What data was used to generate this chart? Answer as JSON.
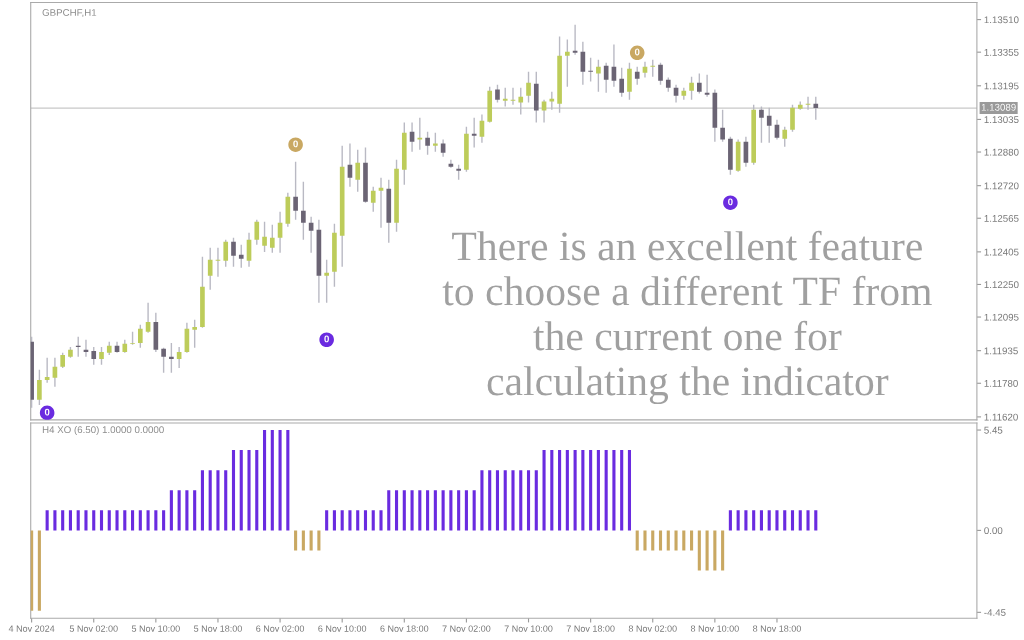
{
  "chart_data": [
    {
      "type": "candlestick",
      "title": "GBPCHF,H1",
      "tick_labels": "y",
      "grid": false,
      "x": [
        "2024-11-04T18:00",
        "2024-11-04T19:00",
        "2024-11-04T20:00",
        "2024-11-04T21:00",
        "2024-11-04T22:00",
        "2024-11-04T23:00",
        "2024-11-05T00:00",
        "2024-11-05T01:00",
        "2024-11-05T02:00",
        "2024-11-05T03:00",
        "2024-11-05T04:00",
        "2024-11-05T05:00",
        "2024-11-05T06:00",
        "2024-11-05T07:00",
        "2024-11-05T08:00",
        "2024-11-05T09:00",
        "2024-11-05T10:00",
        "2024-11-05T11:00",
        "2024-11-05T12:00",
        "2024-11-05T13:00",
        "2024-11-05T14:00",
        "2024-11-05T15:00",
        "2024-11-05T16:00",
        "2024-11-05T17:00",
        "2024-11-05T18:00",
        "2024-11-05T19:00",
        "2024-11-05T20:00",
        "2024-11-05T21:00",
        "2024-11-05T22:00",
        "2024-11-05T23:00",
        "2024-11-06T00:00",
        "2024-11-06T01:00",
        "2024-11-06T02:00",
        "2024-11-06T03:00",
        "2024-11-06T04:00",
        "2024-11-06T05:00",
        "2024-11-06T06:00",
        "2024-11-06T07:00",
        "2024-11-06T08:00",
        "2024-11-06T09:00",
        "2024-11-06T10:00",
        "2024-11-06T11:00",
        "2024-11-06T12:00",
        "2024-11-06T13:00",
        "2024-11-06T14:00",
        "2024-11-06T15:00",
        "2024-11-06T16:00",
        "2024-11-06T17:00",
        "2024-11-06T18:00",
        "2024-11-06T19:00",
        "2024-11-06T20:00",
        "2024-11-06T21:00",
        "2024-11-06T22:00",
        "2024-11-06T23:00",
        "2024-11-07T00:00",
        "2024-11-07T01:00",
        "2024-11-07T02:00",
        "2024-11-07T03:00",
        "2024-11-07T04:00",
        "2024-11-07T05:00",
        "2024-11-07T06:00",
        "2024-11-07T07:00",
        "2024-11-07T08:00",
        "2024-11-07T09:00",
        "2024-11-07T10:00",
        "2024-11-07T11:00",
        "2024-11-07T12:00",
        "2024-11-07T13:00",
        "2024-11-07T14:00",
        "2024-11-07T15:00",
        "2024-11-07T16:00",
        "2024-11-07T17:00",
        "2024-11-07T18:00",
        "2024-11-07T19:00",
        "2024-11-07T20:00",
        "2024-11-07T21:00",
        "2024-11-07T22:00",
        "2024-11-07T23:00",
        "2024-11-08T00:00",
        "2024-11-08T01:00",
        "2024-11-08T02:00",
        "2024-11-08T03:00",
        "2024-11-08T04:00",
        "2024-11-08T05:00",
        "2024-11-08T06:00",
        "2024-11-08T07:00",
        "2024-11-08T08:00",
        "2024-11-08T09:00",
        "2024-11-08T10:00",
        "2024-11-08T11:00",
        "2024-11-08T12:00",
        "2024-11-08T13:00",
        "2024-11-08T14:00",
        "2024-11-08T15:00",
        "2024-11-08T16:00",
        "2024-11-08T17:00",
        "2024-11-08T18:00",
        "2024-11-08T19:00",
        "2024-11-08T20:00",
        "2024-11-08T21:00",
        "2024-11-08T22:00",
        "2024-11-08T23:00"
      ],
      "ohlc": [
        [
          1.11977,
          1.12001,
          1.11663,
          1.11701
        ],
        [
          1.11701,
          1.11844,
          1.11677,
          1.11796
        ],
        [
          1.11796,
          1.11901,
          1.11782,
          1.1181
        ],
        [
          1.11806,
          1.11901,
          1.11763,
          1.11858
        ],
        [
          1.11858,
          1.11925,
          1.11853,
          1.11915
        ],
        [
          1.11906,
          1.11953,
          1.11901,
          1.11939
        ],
        [
          1.11958,
          1.12001,
          1.11906,
          1.11953
        ],
        [
          1.11939,
          1.11987,
          1.11906,
          1.11929
        ],
        [
          1.11934,
          1.11953,
          1.11868,
          1.11896
        ],
        [
          1.11896,
          1.11953,
          1.11868,
          1.11929
        ],
        [
          1.11925,
          1.11977,
          1.11915,
          1.11958
        ],
        [
          1.11958,
          1.11977,
          1.11925,
          1.11929
        ],
        [
          1.11929,
          1.11987,
          1.11925,
          1.11968
        ],
        [
          1.11968,
          1.12025,
          1.11963,
          1.11972
        ],
        [
          1.11972,
          1.12058,
          1.11949,
          1.12039
        ],
        [
          1.12025,
          1.12163,
          1.1202,
          1.12072
        ],
        [
          1.12072,
          1.12115,
          1.11929,
          1.11939
        ],
        [
          1.11944,
          1.11949,
          1.1183,
          1.11906
        ],
        [
          1.11906,
          1.11972,
          1.1183,
          1.11896
        ],
        [
          1.11896,
          1.11953,
          1.11853,
          1.11929
        ],
        [
          1.11929,
          1.12068,
          1.11925,
          1.12039
        ],
        [
          1.12034,
          1.12082,
          1.11949,
          1.12048
        ],
        [
          1.12048,
          1.12382,
          1.12044,
          1.12239
        ],
        [
          1.12291,
          1.12425,
          1.12225,
          1.12367
        ],
        [
          1.12363,
          1.12425,
          1.12287,
          1.12367
        ],
        [
          1.12363,
          1.12463,
          1.12334,
          1.12453
        ],
        [
          1.12453,
          1.12472,
          1.12334,
          1.12386
        ],
        [
          1.12391,
          1.12439,
          1.12329,
          1.12372
        ],
        [
          1.12363,
          1.12496,
          1.12334,
          1.12463
        ],
        [
          1.12463,
          1.12558,
          1.12439,
          1.12548
        ],
        [
          1.12434,
          1.12548,
          1.12405,
          1.12477
        ],
        [
          1.12425,
          1.12534,
          1.12401,
          1.12472
        ],
        [
          1.12472,
          1.12596,
          1.12401,
          1.12544
        ],
        [
          1.12539,
          1.12686,
          1.12524,
          1.12667
        ],
        [
          1.12667,
          1.12834,
          1.12558,
          1.12601
        ],
        [
          1.12601,
          1.12739,
          1.12463,
          1.12544
        ],
        [
          1.12544,
          1.12572,
          1.12401,
          1.12505
        ],
        [
          1.1251,
          1.12558,
          1.12163,
          1.12291
        ],
        [
          1.12291,
          1.12367,
          1.12163,
          1.12306
        ],
        [
          1.1231,
          1.12539,
          1.12239,
          1.12496
        ],
        [
          1.12482,
          1.1291,
          1.12334,
          1.1281
        ],
        [
          1.1282,
          1.1292,
          1.12715,
          1.12758
        ],
        [
          1.12748,
          1.12891,
          1.12691,
          1.12829
        ],
        [
          1.12829,
          1.12901,
          1.12639,
          1.12643
        ],
        [
          1.12639,
          1.12715,
          1.12596,
          1.12696
        ],
        [
          1.12696,
          1.12758,
          1.1252,
          1.1271
        ],
        [
          1.12705,
          1.12748,
          1.12448,
          1.12544
        ],
        [
          1.12544,
          1.12843,
          1.12501,
          1.12801
        ],
        [
          1.12796,
          1.1302,
          1.12724,
          1.12972
        ],
        [
          1.12977,
          1.1302,
          1.12881,
          1.12929
        ],
        [
          1.12939,
          1.13043,
          1.12891,
          1.12948
        ],
        [
          1.12948,
          1.12977,
          1.12867,
          1.1291
        ],
        [
          1.1291,
          1.12972,
          1.12881,
          1.1292
        ],
        [
          1.1292,
          1.12939,
          1.12858,
          1.12877
        ],
        [
          1.12824,
          1.12843,
          1.12805,
          1.1281
        ],
        [
          1.12801,
          1.1282,
          1.12748,
          1.12791
        ],
        [
          1.12796,
          1.13,
          1.12786,
          1.12967
        ],
        [
          1.12967,
          1.13043,
          1.12901,
          1.12958
        ],
        [
          1.12953,
          1.13058,
          1.12924,
          1.13029
        ],
        [
          1.13024,
          1.13191,
          1.1302,
          1.13172
        ],
        [
          1.13177,
          1.132,
          1.13115,
          1.13129
        ],
        [
          1.13124,
          1.13186,
          1.13096,
          1.13134
        ],
        [
          1.13124,
          1.13186,
          1.13105,
          1.13129
        ],
        [
          1.13115,
          1.13186,
          1.13058,
          1.13143
        ],
        [
          1.13148,
          1.13262,
          1.13115,
          1.1321
        ],
        [
          1.13205,
          1.13262,
          1.1302,
          1.13077
        ],
        [
          1.13077,
          1.13129,
          1.1302,
          1.1312
        ],
        [
          1.1312,
          1.13167,
          1.13081,
          1.13134
        ],
        [
          1.1311,
          1.13429,
          1.13067,
          1.13338
        ],
        [
          1.13338,
          1.13415,
          1.13191,
          1.13357
        ],
        [
          1.13362,
          1.13486,
          1.13343,
          1.13352
        ],
        [
          1.13357,
          1.13405,
          1.132,
          1.13262
        ],
        [
          1.13267,
          1.13329,
          1.13215,
          1.13262
        ],
        [
          1.13253,
          1.13319,
          1.13167,
          1.13286
        ],
        [
          1.13291,
          1.13305,
          1.13162,
          1.13224
        ],
        [
          1.13286,
          1.13391,
          1.13191,
          1.13219
        ],
        [
          1.13229,
          1.13281,
          1.13143,
          1.13162
        ],
        [
          1.13167,
          1.13305,
          1.13129,
          1.13276
        ],
        [
          1.13262,
          1.13286,
          1.132,
          1.13229
        ],
        [
          1.13257,
          1.1331,
          1.13234,
          1.13286
        ],
        [
          1.13286,
          1.13319,
          1.13238,
          1.13291
        ],
        [
          1.13295,
          1.13305,
          1.132,
          1.13219
        ],
        [
          1.13224,
          1.13234,
          1.13167,
          1.13186
        ],
        [
          1.13186,
          1.132,
          1.13115,
          1.13148
        ],
        [
          1.13148,
          1.13186,
          1.13129,
          1.13172
        ],
        [
          1.13172,
          1.13238,
          1.13129,
          1.1321
        ],
        [
          1.1321,
          1.13253,
          1.13158,
          1.13167
        ],
        [
          1.13162,
          1.13248,
          1.13143,
          1.13153
        ],
        [
          1.13162,
          1.13177,
          1.12929,
          1.12996
        ],
        [
          1.12996,
          1.13081,
          1.12929,
          1.12939
        ],
        [
          1.12943,
          1.12953,
          1.12772,
          1.12796
        ],
        [
          1.12791,
          1.12939,
          1.12786,
          1.12929
        ],
        [
          1.12929,
          1.12953,
          1.1281,
          1.12829
        ],
        [
          1.12829,
          1.13105,
          1.1282,
          1.13081
        ],
        [
          1.13081,
          1.13096,
          1.12924,
          1.13043
        ],
        [
          1.13053,
          1.13091,
          1.12924,
          1.13005
        ],
        [
          1.1301,
          1.13034,
          1.12939,
          1.12948
        ],
        [
          1.12943,
          1.13,
          1.12905,
          1.12986
        ],
        [
          1.12986,
          1.13105,
          1.12977,
          1.13091
        ],
        [
          1.13086,
          1.1312,
          1.13081,
          1.13105
        ],
        [
          1.13105,
          1.13143,
          1.13081,
          1.1311
        ],
        [
          1.1311,
          1.13143,
          1.13034,
          1.13089
        ]
      ],
      "colors": [
        "#6b6474",
        "#bdcc5a",
        "#bdcc5a",
        "#bdcc5a",
        "#bdcc5a",
        "#bdcc5a",
        "#6b6474",
        "#6b6474",
        "#6b6474",
        "#bdcc5a",
        "#bdcc5a",
        "#6b6474",
        "#bdcc5a",
        "#bdcc5a",
        "#bdcc5a",
        "#bdcc5a",
        "#6b6474",
        "#6b6474",
        "#6b6474",
        "#bdcc5a",
        "#bdcc5a",
        "#bdcc5a",
        "#bdcc5a",
        "#bdcc5a",
        "#bdcc5a",
        "#bdcc5a",
        "#6b6474",
        "#6b6474",
        "#bdcc5a",
        "#bdcc5a",
        "#bdcc5a",
        "#bdcc5a",
        "#bdcc5a",
        "#bdcc5a",
        "#6b6474",
        "#6b6474",
        "#6b6474",
        "#6b6474",
        "#bdcc5a",
        "#bdcc5a",
        "#bdcc5a",
        "#6b6474",
        "#bdcc5a",
        "#6b6474",
        "#bdcc5a",
        "#bdcc5a",
        "#6b6474",
        "#bdcc5a",
        "#bdcc5a",
        "#6b6474",
        "#bdcc5a",
        "#6b6474",
        "#bdcc5a",
        "#6b6474",
        "#6b6474",
        "#6b6474",
        "#bdcc5a",
        "#6b6474",
        "#bdcc5a",
        "#bdcc5a",
        "#6b6474",
        "#bdcc5a",
        "#bdcc5a",
        "#bdcc5a",
        "#bdcc5a",
        "#6b6474",
        "#bdcc5a",
        "#bdcc5a",
        "#bdcc5a",
        "#bdcc5a",
        "#6b6474",
        "#6b6474",
        "#6b6474",
        "#bdcc5a",
        "#6b6474",
        "#6b6474",
        "#6b6474",
        "#bdcc5a",
        "#6b6474",
        "#bdcc5a",
        "#bdcc5a",
        "#6b6474",
        "#6b6474",
        "#6b6474",
        "#bdcc5a",
        "#bdcc5a",
        "#6b6474",
        "#6b6474",
        "#6b6474",
        "#6b6474",
        "#6b6474",
        "#bdcc5a",
        "#6b6474",
        "#bdcc5a",
        "#6b6474",
        "#6b6474",
        "#6b6474",
        "#bdcc5a",
        "#bdcc5a",
        "#bdcc5a",
        "#bdcc5a",
        "#6b6474"
      ],
      "xlim": [
        "2024-11-04T17:53",
        "2024-11-09T19:45"
      ],
      "ylim": [
        1.11606,
        1.13591
      ],
      "yticks": [
        {
          "value": 1.1351,
          "label": "1.13510"
        },
        1.13355,
        1.13195,
        1.13035,
        {
          "value": 1.1288,
          "label": "1.12880"
        },
        {
          "value": 1.1272,
          "label": "1.12720"
        },
        1.12565,
        1.12405,
        {
          "value": 1.1225,
          "label": "1.12250"
        },
        1.12095,
        1.11935,
        {
          "value": 1.1178,
          "label": "1.11780"
        },
        {
          "value": 1.1162,
          "label": "1.11620"
        }
      ],
      "ref_lines": [
        {
          "axis": "y",
          "value": 1.13089,
          "label": "1.13089",
          "color": "#c8c8c8"
        }
      ],
      "series": [
        {
          "type": "scatter",
          "name": "0",
          "color": "#6a2be0",
          "x": [
            "2024-11-04T20:00",
            "2024-11-06T08:00",
            "2024-11-08T12:00"
          ],
          "values": [
            1.11639,
            1.11987,
            1.12639
          ]
        },
        {
          "type": "scatter",
          "name": "0",
          "color": "#c9a862",
          "x": [
            "2024-11-06T04:00",
            "2024-11-08T00:00"
          ],
          "values": [
            1.12915,
            1.13352
          ]
        }
      ],
      "annotations": [
        "There is an excellent feature\nto choose a different TF from\nthe current one for\ncalculating the indicator"
      ]
    },
    {
      "type": "bar",
      "title": "H4 XO (6.50) 1.0000 0.0000",
      "grid": false,
      "x": [
        "2024-11-04T18:00",
        "2024-11-04T19:00",
        "2024-11-04T20:00",
        "2024-11-04T21:00",
        "2024-11-04T22:00",
        "2024-11-04T23:00",
        "2024-11-05T00:00",
        "2024-11-05T01:00",
        "2024-11-05T02:00",
        "2024-11-05T03:00",
        "2024-11-05T04:00",
        "2024-11-05T05:00",
        "2024-11-05T06:00",
        "2024-11-05T07:00",
        "2024-11-05T08:00",
        "2024-11-05T09:00",
        "2024-11-05T10:00",
        "2024-11-05T11:00",
        "2024-11-05T12:00",
        "2024-11-05T13:00",
        "2024-11-05T14:00",
        "2024-11-05T15:00",
        "2024-11-05T16:00",
        "2024-11-05T17:00",
        "2024-11-05T18:00",
        "2024-11-05T19:00",
        "2024-11-05T20:00",
        "2024-11-05T21:00",
        "2024-11-05T22:00",
        "2024-11-05T23:00",
        "2024-11-06T00:00",
        "2024-11-06T01:00",
        "2024-11-06T02:00",
        "2024-11-06T03:00",
        "2024-11-06T04:00",
        "2024-11-06T05:00",
        "2024-11-06T06:00",
        "2024-11-06T07:00",
        "2024-11-06T08:00",
        "2024-11-06T09:00",
        "2024-11-06T10:00",
        "2024-11-06T11:00",
        "2024-11-06T12:00",
        "2024-11-06T13:00",
        "2024-11-06T14:00",
        "2024-11-06T15:00",
        "2024-11-06T16:00",
        "2024-11-06T17:00",
        "2024-11-06T18:00",
        "2024-11-06T19:00",
        "2024-11-06T20:00",
        "2024-11-06T21:00",
        "2024-11-06T22:00",
        "2024-11-06T23:00",
        "2024-11-07T00:00",
        "2024-11-07T01:00",
        "2024-11-07T02:00",
        "2024-11-07T03:00",
        "2024-11-07T04:00",
        "2024-11-07T05:00",
        "2024-11-07T06:00",
        "2024-11-07T07:00",
        "2024-11-07T08:00",
        "2024-11-07T09:00",
        "2024-11-07T10:00",
        "2024-11-07T11:00",
        "2024-11-07T12:00",
        "2024-11-07T13:00",
        "2024-11-07T14:00",
        "2024-11-07T15:00",
        "2024-11-07T16:00",
        "2024-11-07T17:00",
        "2024-11-07T18:00",
        "2024-11-07T19:00",
        "2024-11-07T20:00",
        "2024-11-07T21:00",
        "2024-11-07T22:00",
        "2024-11-07T23:00",
        "2024-11-08T00:00",
        "2024-11-08T01:00",
        "2024-11-08T02:00",
        "2024-11-08T03:00",
        "2024-11-08T04:00",
        "2024-11-08T05:00",
        "2024-11-08T06:00",
        "2024-11-08T07:00",
        "2024-11-08T08:00",
        "2024-11-08T09:00",
        "2024-11-08T10:00",
        "2024-11-08T11:00",
        "2024-11-08T12:00",
        "2024-11-08T13:00",
        "2024-11-08T14:00",
        "2024-11-08T15:00",
        "2024-11-08T16:00",
        "2024-11-08T17:00",
        "2024-11-08T18:00",
        "2024-11-08T19:00",
        "2024-11-08T20:00",
        "2024-11-08T21:00",
        "2024-11-08T22:00",
        "2024-11-08T23:00"
      ],
      "values": [
        -4.36,
        -4.36,
        1.09,
        1.09,
        1.09,
        1.09,
        1.09,
        1.09,
        1.09,
        1.09,
        1.09,
        1.09,
        1.09,
        1.09,
        1.09,
        1.09,
        1.09,
        1.09,
        2.18,
        2.18,
        2.18,
        2.18,
        3.27,
        3.27,
        3.27,
        3.27,
        4.36,
        4.36,
        4.36,
        4.36,
        5.45,
        5.45,
        5.45,
        5.45,
        -1.09,
        -1.09,
        -1.09,
        -1.09,
        1.09,
        1.09,
        1.09,
        1.09,
        1.09,
        1.09,
        1.09,
        1.09,
        2.18,
        2.18,
        2.18,
        2.18,
        2.18,
        2.18,
        2.18,
        2.18,
        2.18,
        2.18,
        2.18,
        2.18,
        3.27,
        3.27,
        3.27,
        3.27,
        3.27,
        3.27,
        3.27,
        3.27,
        4.36,
        4.36,
        4.36,
        4.36,
        4.36,
        4.36,
        4.36,
        4.36,
        4.36,
        4.36,
        4.36,
        4.36,
        -1.09,
        -1.09,
        -1.09,
        -1.09,
        -1.09,
        -1.09,
        -1.09,
        -1.09,
        -2.18,
        -2.18,
        -2.18,
        -2.18,
        1.09,
        1.09,
        1.09,
        1.09,
        1.09,
        1.09,
        1.09,
        1.09,
        1.09,
        1.09,
        1.09,
        1.09
      ],
      "colors": [
        "#c9a862",
        "#c9a862",
        "#6a2be0",
        "#6a2be0",
        "#6a2be0",
        "#6a2be0",
        "#6a2be0",
        "#6a2be0",
        "#6a2be0",
        "#6a2be0",
        "#6a2be0",
        "#6a2be0",
        "#6a2be0",
        "#6a2be0",
        "#6a2be0",
        "#6a2be0",
        "#6a2be0",
        "#6a2be0",
        "#6a2be0",
        "#6a2be0",
        "#6a2be0",
        "#6a2be0",
        "#6a2be0",
        "#6a2be0",
        "#6a2be0",
        "#6a2be0",
        "#6a2be0",
        "#6a2be0",
        "#6a2be0",
        "#6a2be0",
        "#6a2be0",
        "#6a2be0",
        "#6a2be0",
        "#6a2be0",
        "#c9a862",
        "#c9a862",
        "#c9a862",
        "#c9a862",
        "#6a2be0",
        "#6a2be0",
        "#6a2be0",
        "#6a2be0",
        "#6a2be0",
        "#6a2be0",
        "#6a2be0",
        "#6a2be0",
        "#6a2be0",
        "#6a2be0",
        "#6a2be0",
        "#6a2be0",
        "#6a2be0",
        "#6a2be0",
        "#6a2be0",
        "#6a2be0",
        "#6a2be0",
        "#6a2be0",
        "#6a2be0",
        "#6a2be0",
        "#6a2be0",
        "#6a2be0",
        "#6a2be0",
        "#6a2be0",
        "#6a2be0",
        "#6a2be0",
        "#6a2be0",
        "#6a2be0",
        "#6a2be0",
        "#6a2be0",
        "#6a2be0",
        "#6a2be0",
        "#6a2be0",
        "#6a2be0",
        "#6a2be0",
        "#6a2be0",
        "#6a2be0",
        "#6a2be0",
        "#6a2be0",
        "#6a2be0",
        "#c9a862",
        "#c9a862",
        "#c9a862",
        "#c9a862",
        "#c9a862",
        "#c9a862",
        "#c9a862",
        "#c9a862",
        "#c9a862",
        "#c9a862",
        "#c9a862",
        "#c9a862",
        "#6a2be0",
        "#6a2be0",
        "#6a2be0",
        "#6a2be0",
        "#6a2be0",
        "#6a2be0",
        "#6a2be0",
        "#6a2be0",
        "#6a2be0",
        "#6a2be0",
        "#6a2be0",
        "#6a2be0"
      ],
      "xlim": [
        "2024-11-04T17:53",
        "2024-11-09T19:45"
      ],
      "xticks": [
        {
          "value": "2024-11-04T18:00",
          "label": "4 Nov 2024"
        },
        {
          "value": "2024-11-05T02:00",
          "label": "5 Nov 02:00"
        },
        {
          "value": "2024-11-05T10:00",
          "label": "5 Nov 10:00"
        },
        {
          "value": "2024-11-05T18:00",
          "label": "5 Nov 18:00"
        },
        {
          "value": "2024-11-06T02:00",
          "label": "6 Nov 02:00"
        },
        {
          "value": "2024-11-06T10:00",
          "label": "6 Nov 10:00"
        },
        {
          "value": "2024-11-06T18:00",
          "label": "6 Nov 18:00"
        },
        {
          "value": "2024-11-07T02:00",
          "label": "7 Nov 02:00"
        },
        {
          "value": "2024-11-07T10:00",
          "label": "7 Nov 10:00"
        },
        {
          "value": "2024-11-07T18:00",
          "label": "7 Nov 18:00"
        },
        {
          "value": "2024-11-08T02:00",
          "label": "8 Nov 02:00"
        },
        {
          "value": "2024-11-08T10:00",
          "label": "8 Nov 10:00"
        },
        {
          "value": "2024-11-08T18:00",
          "label": "8 Nov 18:00"
        }
      ],
      "ylim": [
        -4.77,
        5.83
      ],
      "yticks": [
        {
          "value": 5.45,
          "label": "5.45"
        },
        {
          "value": 0,
          "label": "0.00"
        },
        {
          "value": -4.45,
          "label": "-4.45"
        }
      ]
    }
  ]
}
